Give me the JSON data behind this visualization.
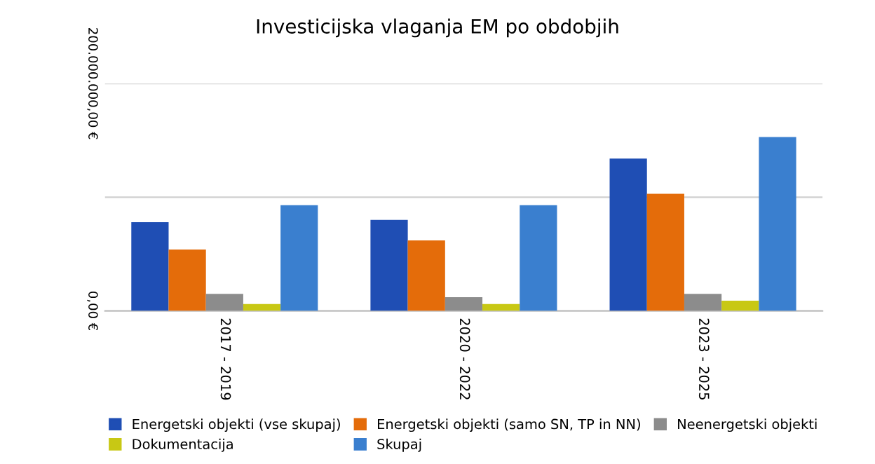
{
  "chart_data": {
    "type": "bar",
    "title": "Investicijska vlaganja EM po obdobjih",
    "categories": [
      "2017 - 2019",
      "2020 - 2022",
      "2023 - 2025"
    ],
    "series": [
      {
        "name": "Energetski objekti (vse skupaj)",
        "color": "#1f4eb4",
        "values": [
          78000000,
          80000000,
          134000000
        ]
      },
      {
        "name": "Energetski objekti (samo SN, TP in NN)",
        "color": "#e46c0a",
        "values": [
          54000000,
          62000000,
          103000000
        ]
      },
      {
        "name": "Neenergetski objekti",
        "color": "#8c8c8c",
        "values": [
          15000000,
          12000000,
          15000000
        ]
      },
      {
        "name": "Dokumentacija",
        "color": "#c8c814",
        "values": [
          6000000,
          6000000,
          9000000
        ]
      },
      {
        "name": "Skupaj",
        "color": "#3a7fcf",
        "values": [
          93000000,
          93000000,
          153000000
        ]
      }
    ],
    "ylim": [
      0,
      200000000
    ],
    "yticks": [
      {
        "value": 0,
        "label": "0,00 €"
      },
      {
        "value": 100000000,
        "label": null
      },
      {
        "value": 200000000,
        "label": "200.000.000,00 €"
      }
    ],
    "grid": "y",
    "legend": "bottom"
  }
}
